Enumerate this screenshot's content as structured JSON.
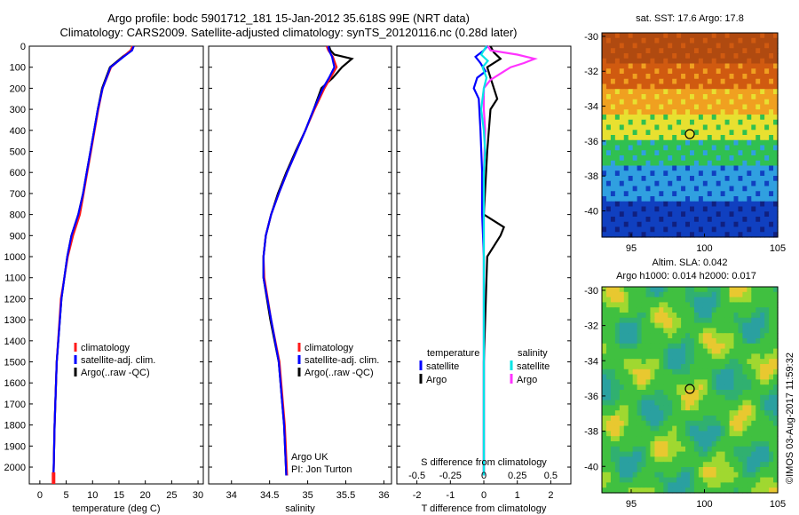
{
  "header": {
    "line1": "Argo profile: bodc 5901712_181 15-Jan-2012 35.618S 99E (NRT data)",
    "line2": "Climatology: CARS2009. Satellite-adjusted climatology: synTS_20120116.nc (0.28d later)"
  },
  "credit": "©IMOS 03-Aug-2017 11:59:32",
  "colors": {
    "climatology": "#ff1a1a",
    "satellite": "#0000ff",
    "argo": "#000000",
    "sal_satellite": "#00e5e5",
    "sal_argo": "#ff33ff"
  },
  "chart_data": [
    {
      "type": "line",
      "xlabel": "temperature (deg C)",
      "ylabel": "",
      "xlim": [
        -2,
        31
      ],
      "ylim": [
        2080,
        0
      ],
      "xticks": [
        0,
        5,
        10,
        15,
        20,
        25,
        30
      ],
      "yticks": [
        0,
        100,
        200,
        300,
        400,
        500,
        600,
        700,
        800,
        900,
        1000,
        1100,
        1200,
        1300,
        1400,
        1500,
        1600,
        1700,
        1800,
        1900,
        2000
      ],
      "legend": {
        "position": "lower-right",
        "entries": [
          "climatology",
          "satellite-adj. clim.",
          "Argo(..raw -QC)"
        ]
      },
      "series": [
        {
          "name": "climatology",
          "depth": [
            2040,
            1800,
            1500,
            1200,
            1000,
            900,
            800,
            700,
            600,
            500,
            400,
            300,
            200,
            100,
            50,
            20,
            0
          ],
          "values": [
            2.6,
            2.8,
            3.2,
            4.0,
            5.3,
            6.3,
            7.6,
            8.3,
            9.0,
            9.7,
            10.4,
            11.1,
            11.9,
            13.5,
            15.8,
            17.2,
            17.6
          ]
        },
        {
          "name": "satellite-adj. clim.",
          "depth": [
            2040,
            1800,
            1500,
            1200,
            1000,
            900,
            800,
            700,
            600,
            500,
            400,
            300,
            200,
            100,
            50,
            20,
            0
          ],
          "values": [
            2.6,
            2.8,
            3.2,
            4.1,
            5.2,
            6.0,
            7.3,
            8.2,
            8.9,
            9.6,
            10.3,
            11.0,
            11.9,
            13.4,
            15.9,
            17.5,
            17.8
          ]
        },
        {
          "name": "Argo(..raw -QC)",
          "depth": [
            2040,
            1800,
            1500,
            1200,
            1000,
            900,
            800,
            700,
            600,
            500,
            400,
            300,
            200,
            100,
            50,
            20,
            0
          ],
          "values": [
            2.6,
            2.8,
            3.2,
            4.1,
            5.2,
            6.0,
            7.3,
            8.2,
            8.9,
            9.6,
            10.3,
            11.0,
            11.8,
            13.3,
            15.7,
            17.4,
            17.8
          ]
        }
      ]
    },
    {
      "type": "line",
      "xlabel": "salinity",
      "xlim": [
        33.7,
        36.1
      ],
      "ylim": [
        2080,
        0
      ],
      "xticks": [
        34,
        34.5,
        35,
        35.5,
        36
      ],
      "xticklabels": [
        "34",
        "34.5",
        "35",
        "35.5",
        "36"
      ],
      "legend": {
        "position": "lower-right",
        "entries": [
          "climatology",
          "satellite-adj. clim.",
          "Argo(..raw -QC)"
        ]
      },
      "annotation": [
        "Argo UK",
        "PI: Jon Turton"
      ],
      "series": [
        {
          "name": "climatology",
          "depth": [
            2040,
            1800,
            1500,
            1300,
            1100,
            1000,
            900,
            800,
            700,
            600,
            500,
            400,
            300,
            200,
            150,
            100,
            50,
            20,
            0
          ],
          "values": [
            34.73,
            34.7,
            34.63,
            34.52,
            34.43,
            34.42,
            34.45,
            34.52,
            34.62,
            34.73,
            34.85,
            34.97,
            35.09,
            35.22,
            35.3,
            35.38,
            35.33,
            35.27,
            35.25
          ]
        },
        {
          "name": "satellite-adj. clim.",
          "depth": [
            2040,
            1800,
            1500,
            1300,
            1100,
            1000,
            900,
            800,
            700,
            600,
            500,
            400,
            300,
            200,
            150,
            100,
            50,
            20,
            0
          ],
          "values": [
            34.72,
            34.69,
            34.62,
            34.52,
            34.42,
            34.42,
            34.45,
            34.52,
            34.62,
            34.73,
            34.85,
            34.97,
            35.08,
            35.2,
            35.28,
            35.35,
            35.32,
            35.28,
            35.27
          ]
        },
        {
          "name": "Argo(..raw -QC)",
          "depth": [
            2040,
            1800,
            1500,
            1300,
            1100,
            1000,
            900,
            800,
            700,
            600,
            500,
            400,
            300,
            200,
            150,
            100,
            60,
            40,
            20,
            0
          ],
          "values": [
            34.72,
            34.69,
            34.62,
            34.51,
            34.42,
            34.42,
            34.45,
            34.52,
            34.61,
            34.72,
            34.84,
            34.97,
            35.08,
            35.18,
            35.33,
            35.45,
            35.58,
            35.35,
            35.3,
            35.28
          ]
        }
      ]
    },
    {
      "type": "line",
      "xlabel": "T difference from climatology",
      "xlabel_top": "S difference from climatology",
      "xlim": [
        -2.6,
        2.6
      ],
      "ylim": [
        2080,
        0
      ],
      "xticks": [
        -2,
        -1,
        0,
        1,
        2
      ],
      "xticks_top": [
        -0.5,
        -0.25,
        0,
        0.25,
        0.5
      ],
      "xticklabels_top": [
        "-0.5",
        "-0.25",
        "0",
        "0.25",
        "0.5"
      ],
      "legend": {
        "position": "lower",
        "groups": [
          {
            "title": "temperature",
            "entries": [
              "satellite",
              "Argo"
            ]
          },
          {
            "title": "salinity",
            "entries": [
              "satellite",
              "Argo"
            ]
          }
        ]
      },
      "series": [
        {
          "name": "temperature satellite",
          "depth": [
            2040,
            1500,
            1000,
            800,
            600,
            400,
            250,
            200,
            150,
            120,
            80,
            50,
            20,
            0
          ],
          "values": [
            0.0,
            0.0,
            0.0,
            -0.05,
            -0.05,
            -0.1,
            -0.15,
            -0.3,
            -0.2,
            0.05,
            -0.1,
            -0.25,
            0.0,
            0.1
          ]
        },
        {
          "name": "temperature Argo",
          "depth": [
            2040,
            1500,
            1000,
            950,
            900,
            860,
            830,
            800,
            500,
            300,
            250,
            200,
            150,
            100,
            60,
            30,
            0
          ],
          "values": [
            0.0,
            0.0,
            0.1,
            0.3,
            0.5,
            0.6,
            0.3,
            0.0,
            0.1,
            0.2,
            0.4,
            0.3,
            0.2,
            0.1,
            0.5,
            0.3,
            0.2
          ]
        },
        {
          "name": "salinity satellite",
          "depth": [
            2040,
            1500,
            1000,
            800,
            600,
            500,
            400,
            300,
            200,
            150,
            100,
            70,
            40,
            20,
            0
          ],
          "values": [
            0.0,
            0.0,
            0.0,
            0.0,
            0.0,
            0.01,
            0.0,
            -0.02,
            0.0,
            0.02,
            -0.01,
            0.03,
            -0.02,
            0.0,
            0.02
          ]
        },
        {
          "name": "salinity Argo",
          "depth": [
            2040,
            1500,
            1000,
            800,
            600,
            400,
            300,
            200,
            160,
            120,
            100,
            80,
            60,
            40,
            20,
            0
          ],
          "values": [
            0.0,
            0.0,
            0.0,
            0.0,
            0.0,
            0.01,
            0.0,
            0.0,
            0.05,
            0.15,
            0.2,
            0.3,
            0.38,
            0.25,
            0.05,
            0.03
          ]
        }
      ]
    },
    {
      "type": "heatmap",
      "title": "sat. SST: 17.6 Argo: 17.8",
      "xlim": [
        93,
        105
      ],
      "ylim": [
        -41.5,
        -29.8
      ],
      "xticks": [
        95,
        100,
        105
      ],
      "yticks": [
        -30,
        -32,
        -34,
        -36,
        -38,
        -40
      ],
      "marker": {
        "lon": 99,
        "lat": -35.6
      },
      "color_by_lat": [
        [
          -30,
          "#b04a10"
        ],
        [
          -31.5,
          "#d05a10"
        ],
        [
          -33,
          "#f0a020"
        ],
        [
          -34.5,
          "#e8e030"
        ],
        [
          -36,
          "#30c050"
        ],
        [
          -37.5,
          "#30a0e0"
        ],
        [
          -39.5,
          "#1040c0"
        ],
        [
          -41.5,
          "#102080"
        ]
      ]
    },
    {
      "type": "heatmap",
      "title": "Altim. SLA: 0.042",
      "subtitle": "Argo h1000: 0.014 h2000: 0.017",
      "xlim": [
        93,
        105
      ],
      "ylim": [
        -41.5,
        -29.8
      ],
      "xticks": [
        95,
        100,
        105
      ],
      "yticks": [
        -30,
        -32,
        -34,
        -36,
        -38,
        -40
      ],
      "marker": {
        "lon": 99,
        "lat": -35.6
      }
    }
  ]
}
